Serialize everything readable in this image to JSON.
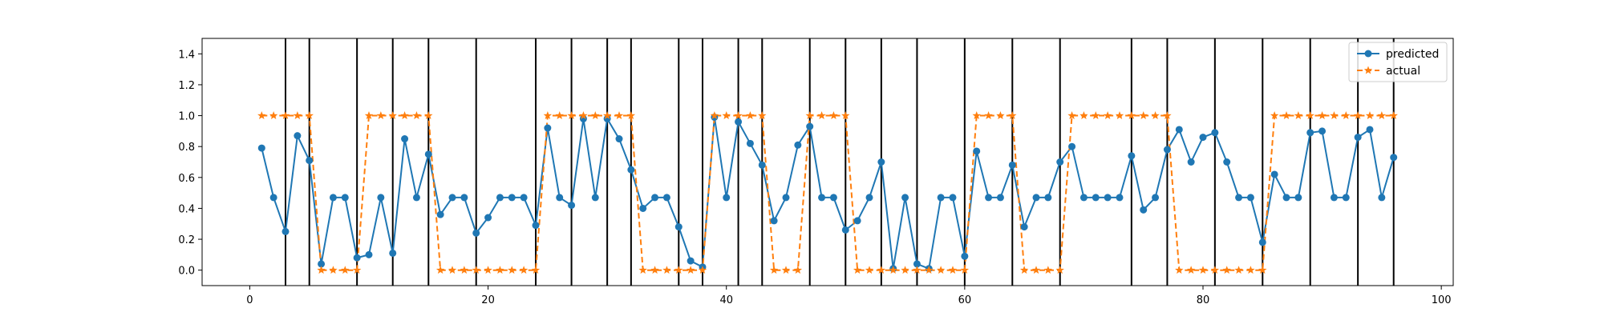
{
  "chart_data": {
    "type": "line",
    "title": "",
    "xlabel": "",
    "ylabel": "",
    "xlim": [
      -4,
      101
    ],
    "ylim": [
      -0.1,
      1.5
    ],
    "xticks": [
      0,
      20,
      40,
      60,
      80,
      100
    ],
    "yticks": [
      0.0,
      0.2,
      0.4,
      0.6,
      0.8,
      1.0,
      1.2,
      1.4
    ],
    "grid": false,
    "legend_position": "top-right",
    "vlines": [
      3,
      5,
      9,
      12,
      15,
      19,
      24,
      27,
      30,
      32,
      36,
      38,
      41,
      43,
      47,
      50,
      53,
      56,
      60,
      64,
      68,
      74,
      77,
      81,
      85,
      89,
      93,
      96
    ],
    "series": [
      {
        "name": "predicted",
        "color": "#1f77b4",
        "marker": "circle",
        "linestyle": "solid",
        "x": [
          1,
          2,
          3,
          4,
          5,
          6,
          7,
          8,
          9,
          10,
          11,
          12,
          13,
          14,
          15,
          16,
          17,
          18,
          19,
          20,
          21,
          22,
          23,
          24,
          25,
          26,
          27,
          28,
          29,
          30,
          31,
          32,
          33,
          34,
          35,
          36,
          37,
          38,
          39,
          40,
          41,
          42,
          43,
          44,
          45,
          46,
          47,
          48,
          49,
          50,
          51,
          52,
          53,
          54,
          55,
          56,
          57,
          58,
          59,
          60,
          61,
          62,
          63,
          64,
          65,
          66,
          67,
          68,
          69,
          70,
          71,
          72,
          73,
          74,
          75,
          76,
          77,
          78,
          79,
          80,
          81,
          82,
          83,
          84,
          85,
          86,
          87,
          88,
          89,
          90,
          91,
          92,
          93,
          94,
          95,
          96
        ],
        "values": [
          0.79,
          0.47,
          0.25,
          0.87,
          0.71,
          0.04,
          0.47,
          0.47,
          0.08,
          0.1,
          0.47,
          0.11,
          0.85,
          0.47,
          0.75,
          0.36,
          0.47,
          0.47,
          0.24,
          0.34,
          0.47,
          0.47,
          0.47,
          0.29,
          0.92,
          0.47,
          0.42,
          0.98,
          0.47,
          0.98,
          0.85,
          0.65,
          0.4,
          0.47,
          0.47,
          0.28,
          0.06,
          0.02,
          0.99,
          0.47,
          0.96,
          0.82,
          0.68,
          0.32,
          0.47,
          0.81,
          0.93,
          0.47,
          0.47,
          0.26,
          0.32,
          0.47,
          0.7,
          0.01,
          0.47,
          0.04,
          0.01,
          0.47,
          0.47,
          0.09,
          0.77,
          0.47,
          0.47,
          0.68,
          0.28,
          0.47,
          0.47,
          0.7,
          0.8,
          0.47,
          0.47,
          0.47,
          0.47,
          0.74,
          0.39,
          0.47,
          0.78,
          0.91,
          0.7,
          0.86,
          0.89,
          0.7,
          0.47,
          0.47,
          0.18,
          0.62,
          0.47,
          0.47,
          0.89,
          0.9,
          0.47,
          0.47,
          0.86,
          0.91,
          0.47,
          0.73
        ]
      },
      {
        "name": "actual",
        "color": "#ff7f0e",
        "marker": "star",
        "linestyle": "dashed",
        "x": [
          1,
          2,
          3,
          4,
          5,
          6,
          7,
          8,
          9,
          10,
          11,
          12,
          13,
          14,
          15,
          16,
          17,
          18,
          19,
          20,
          21,
          22,
          23,
          24,
          25,
          26,
          27,
          28,
          29,
          30,
          31,
          32,
          33,
          34,
          35,
          36,
          37,
          38,
          39,
          40,
          41,
          42,
          43,
          44,
          45,
          46,
          47,
          48,
          49,
          50,
          51,
          52,
          53,
          54,
          55,
          56,
          57,
          58,
          59,
          60,
          61,
          62,
          63,
          64,
          65,
          66,
          67,
          68,
          69,
          70,
          71,
          72,
          73,
          74,
          75,
          76,
          77,
          78,
          79,
          80,
          81,
          82,
          83,
          84,
          85,
          86,
          87,
          88,
          89,
          90,
          91,
          92,
          93,
          94,
          95,
          96
        ],
        "values": [
          1,
          1,
          1,
          1,
          1,
          0,
          0,
          0,
          0,
          1,
          1,
          1,
          1,
          1,
          1,
          0,
          0,
          0,
          0,
          0,
          0,
          0,
          0,
          0,
          1,
          1,
          1,
          1,
          1,
          1,
          1,
          1,
          0,
          0,
          0,
          0,
          0,
          0,
          1,
          1,
          1,
          1,
          1,
          0,
          0,
          0,
          1,
          1,
          1,
          1,
          0,
          0,
          0,
          0,
          0,
          0,
          0,
          0,
          0,
          0,
          1,
          1,
          1,
          1,
          0,
          0,
          0,
          0,
          1,
          1,
          1,
          1,
          1,
          1,
          1,
          1,
          1,
          0,
          0,
          0,
          0,
          0,
          0,
          0,
          0,
          1,
          1,
          1,
          1,
          1,
          1,
          1,
          1,
          1,
          1,
          1
        ]
      }
    ]
  }
}
